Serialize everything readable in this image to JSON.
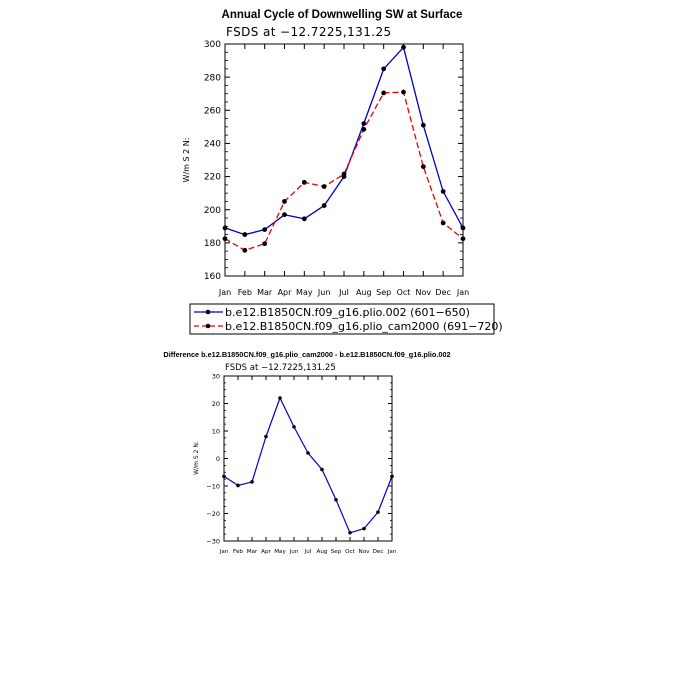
{
  "chart_data": [
    {
      "type": "line",
      "title": "Annual Cycle of Downwelling SW at Surface",
      "subtitle": "FSDS at −12.7225,131.25",
      "xlabel": "",
      "ylabel": "W/m S 2 N:",
      "categories": [
        "Jan",
        "Feb",
        "Mar",
        "Apr",
        "May",
        "Jun",
        "Jul",
        "Aug",
        "Sep",
        "Oct",
        "Nov",
        "Dec",
        "Jan"
      ],
      "ylim": [
        160,
        300
      ],
      "yticks": [
        160,
        180,
        200,
        220,
        240,
        260,
        280,
        300
      ],
      "ytick_labels": [
        "160",
        "180",
        "200",
        "220",
        "240",
        "260",
        "280",
        "300"
      ],
      "legend_position": "below",
      "series": [
        {
          "name": "b.e12.B1850CN.f09_g16.plio.002 (601−650)",
          "color": "#0000cc",
          "dash": "solid",
          "values": [
            189,
            185,
            188,
            197,
            194.5,
            202.5,
            220,
            252,
            285,
            298,
            251,
            211,
            189
          ]
        },
        {
          "name": "b.e12.B1850CN.f09_g16.plio_cam2000 (691−720)",
          "color": "#ee0000",
          "dash": "dashed",
          "values": [
            182.5,
            175.5,
            179.5,
            205,
            216.5,
            214,
            221.5,
            248.5,
            270.5,
            271,
            226,
            192,
            182.5
          ]
        }
      ]
    },
    {
      "type": "line",
      "title": "Difference b.e12.B1850CN.f09_g16.plio_cam2000 - b.e12.B1850CN.f09_g16.plio.002",
      "subtitle": "FSDS at −12.7225,131.25",
      "xlabel": "",
      "ylabel": "W/m S 2 N:",
      "categories": [
        "Jan",
        "Feb",
        "Mar",
        "Apr",
        "May",
        "Jun",
        "Jul",
        "Aug",
        "Sep",
        "Oct",
        "Nov",
        "Dec",
        "Jan"
      ],
      "ylim": [
        -30,
        30
      ],
      "yticks": [
        -30,
        -20,
        -10,
        0,
        10,
        20,
        30
      ],
      "ytick_labels": [
        "−30",
        "−20",
        "−10",
        "0",
        "10",
        "20",
        "30"
      ],
      "series": [
        {
          "name": "difference",
          "color": "#0000cc",
          "dash": "solid",
          "values": [
            -6.5,
            -9.8,
            -8.5,
            8,
            22,
            11.5,
            2,
            -4,
            -15,
            -27,
            -25.5,
            -19.5,
            -6.5
          ]
        }
      ]
    }
  ]
}
